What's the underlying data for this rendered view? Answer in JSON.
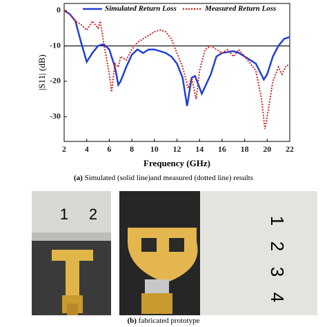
{
  "chart_data": {
    "type": "line",
    "ylabel": "|S11| (dB)",
    "xlabel": "Frequency (GHz)",
    "xlim": [
      2,
      22
    ],
    "xticks": [
      2,
      4,
      6,
      8,
      10,
      12,
      14,
      16,
      18,
      20,
      22
    ],
    "ylim": [
      -37,
      2
    ],
    "yticks": [
      0,
      -10,
      -20,
      -30
    ],
    "hline": -10,
    "series": [
      {
        "name": "Simulated Return Loss",
        "color": "#1f3fd6",
        "style": "solid",
        "x": [
          2,
          2.5,
          3,
          3.5,
          4,
          4.5,
          5,
          5.5,
          6,
          6.5,
          6.8,
          7,
          7.5,
          8,
          8.5,
          9,
          9.5,
          10,
          10.5,
          11,
          11.5,
          12,
          12.5,
          12.9,
          13.3,
          13.6,
          14.2,
          15,
          15.5,
          16,
          17,
          17.5,
          18,
          19,
          19.7,
          20,
          20.5,
          21,
          21.5,
          22
        ],
        "values": [
          0,
          -1,
          -3,
          -9,
          -14.5,
          -12,
          -10,
          -9.5,
          -11,
          -16,
          -21,
          -20,
          -16,
          -12.5,
          -11,
          -12,
          -11,
          -11,
          -11.5,
          -12,
          -13,
          -15,
          -19,
          -27,
          -19,
          -18.5,
          -23.5,
          -18,
          -13,
          -12,
          -11.5,
          -12,
          -13,
          -15,
          -19.5,
          -18,
          -13,
          -10,
          -8,
          -7.5
        ]
      },
      {
        "name": "Measured Return Loss",
        "color": "#d42020",
        "style": "dotted",
        "x": [
          2,
          2.5,
          3,
          3.5,
          4,
          4.5,
          5,
          5.2,
          5.5,
          6,
          6.2,
          6.5,
          6.8,
          7,
          7.5,
          8,
          8.5,
          9,
          10,
          10.5,
          11,
          11.5,
          12,
          12.5,
          13,
          13.3,
          13.7,
          14,
          14.5,
          15,
          15.5,
          16,
          16.5,
          17,
          17.5,
          18,
          18.5,
          19,
          19.5,
          19.8,
          20,
          20.5,
          21,
          21.3,
          21.7,
          22
        ],
        "values": [
          0,
          -1,
          -3,
          -4,
          -5.5,
          -3,
          -5,
          -3,
          -9,
          -18,
          -23,
          -15,
          -16,
          -13,
          -14,
          -11,
          -9,
          -8,
          -6,
          -5.5,
          -6,
          -8,
          -12,
          -16,
          -22,
          -19,
          -25,
          -17,
          -11,
          -10,
          -11,
          -12,
          -11,
          -13,
          -11,
          -13,
          -15,
          -17,
          -25,
          -33.5,
          -30,
          -20,
          -16,
          -18,
          -15.5,
          -15.5
        ]
      }
    ]
  },
  "caption_a": {
    "label": "(a)",
    "text": "Simulated (solid line)and measured (dotted line) results"
  },
  "caption_b": {
    "label": "(b)",
    "text": "fabricated prototype"
  },
  "photos": {
    "left_ruler": [
      "1",
      "2"
    ],
    "right_ruler": [
      "1",
      "2",
      "3",
      "4"
    ]
  }
}
